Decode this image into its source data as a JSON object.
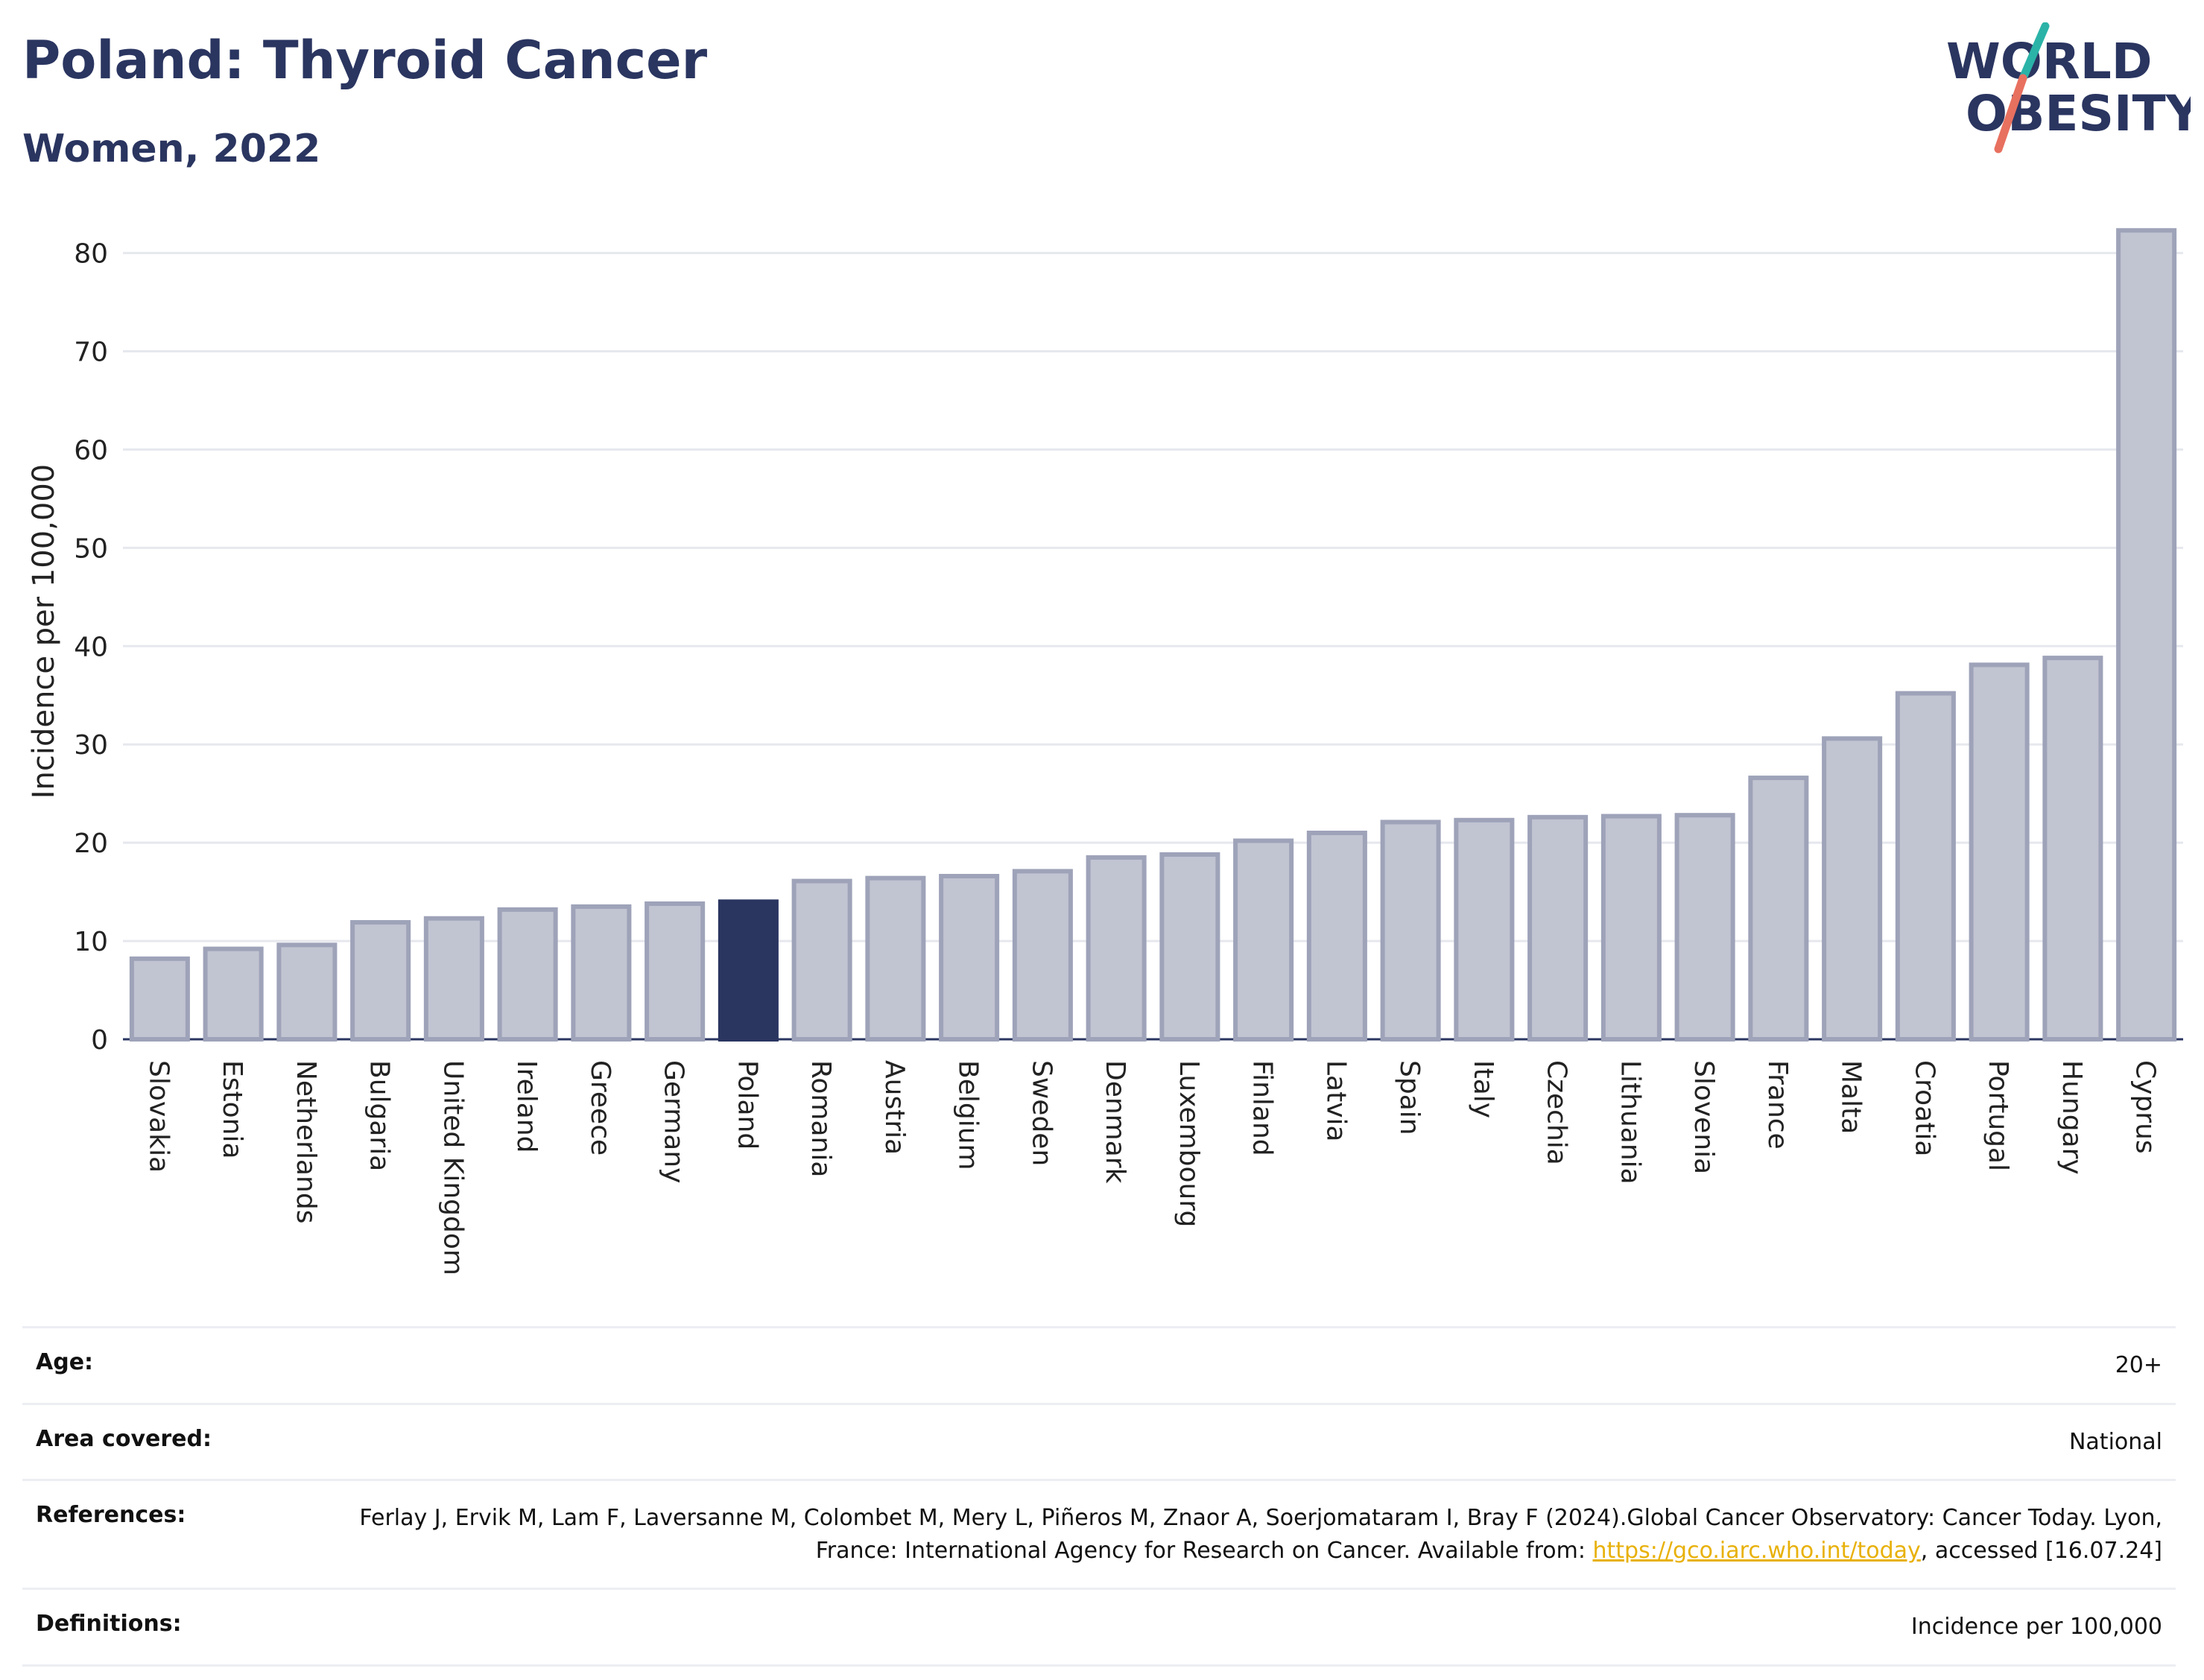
{
  "header": {
    "title": "Poland: Thyroid Cancer",
    "subtitle": "Women, 2022"
  },
  "logo": {
    "line1": "WORLD",
    "line2": "OBESITY",
    "colors": {
      "text": "#2a3560",
      "slash_top": "#2bb3a8",
      "slash_bottom": "#e8705f"
    }
  },
  "colors": {
    "highlight_bar": "#2a3560",
    "other_bar_fill": "#c1c4d1",
    "other_bar_stroke": "#9ea3b9",
    "grid": "#e6e8ee",
    "axis": "#2a3560"
  },
  "chart_data": {
    "type": "bar",
    "ylabel": "Incidence per 100,000",
    "xlabel": "",
    "ylim": [
      0,
      83
    ],
    "yticks": [
      0,
      10,
      20,
      30,
      40,
      50,
      60,
      70,
      80
    ],
    "grid": true,
    "highlight": "Poland",
    "categories": [
      "Slovakia",
      "Estonia",
      "Netherlands",
      "Bulgaria",
      "United Kingdom",
      "Ireland",
      "Greece",
      "Germany",
      "Poland",
      "Romania",
      "Austria",
      "Belgium",
      "Sweden",
      "Denmark",
      "Luxembourg",
      "Finland",
      "Latvia",
      "Spain",
      "Italy",
      "Czechia",
      "Lithuania",
      "Slovenia",
      "France",
      "Malta",
      "Croatia",
      "Portugal",
      "Hungary",
      "Cyprus"
    ],
    "values": [
      8.2,
      9.2,
      9.6,
      11.9,
      12.3,
      13.2,
      13.5,
      13.8,
      14.0,
      16.1,
      16.4,
      16.6,
      17.1,
      18.5,
      18.8,
      20.2,
      21.0,
      22.1,
      22.3,
      22.6,
      22.7,
      22.8,
      26.6,
      30.6,
      35.2,
      38.1,
      38.8,
      82.3
    ]
  },
  "info": {
    "age": {
      "label": "Age:",
      "value": "20+"
    },
    "area": {
      "label": "Area covered:",
      "value": "National"
    },
    "references": {
      "label": "References:",
      "text1": "Ferlay J, Ervik M, Lam F, Laversanne M, Colombet M, Mery L, Piñeros M, Znaor A, Soerjomataram I, Bray F (2024).Global Cancer Observatory: Cancer Today. Lyon, France: International Agency for Research on Cancer. Available from: ",
      "link": "https://gco.iarc.who.int/today",
      "text2": ", accessed [16.07.24]"
    },
    "definitions": {
      "label": "Definitions:",
      "value": "Incidence per 100,000"
    }
  }
}
